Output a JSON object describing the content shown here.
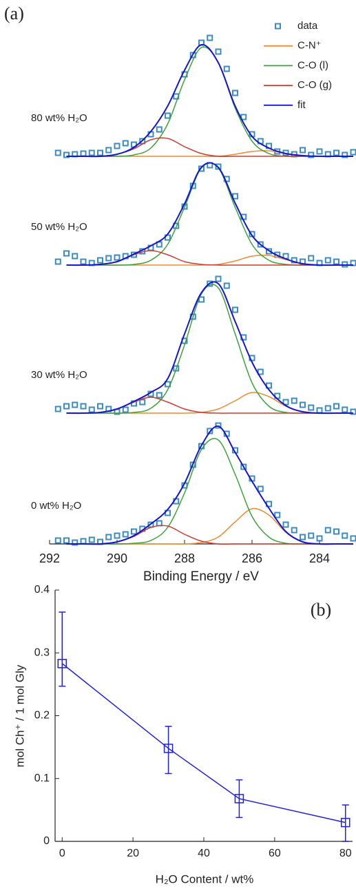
{
  "chart_data": [
    {
      "type": "xps",
      "title": "(a)",
      "xlabel": "Binding Energy / eV",
      "xlim": [
        292,
        283
      ],
      "xticks": [
        292,
        290,
        288,
        286,
        284
      ],
      "ylim": [
        0,
        7.6
      ],
      "panel_labels": [
        "80 wt% H₂O",
        "50 wt% H₂O",
        "30 wt% H₂O",
        "0 wt% H₂O"
      ],
      "x": [
        291.5,
        291,
        290.5,
        290,
        289.5,
        289,
        288.5,
        288,
        287.5,
        287,
        286.5,
        286,
        285.5,
        285,
        284.5,
        284,
        283.5,
        283
      ],
      "series": [
        {
          "name": "data",
          "color": "#3a8bc0",
          "x": [
            291.75,
            291.5,
            291.25,
            291,
            290.75,
            290.5,
            290.25,
            290,
            289.75,
            289.5,
            289.25,
            289,
            288.75,
            288.5,
            288.25,
            288,
            287.75,
            287.5,
            287.25,
            287,
            286.75,
            286.5,
            286.25,
            286,
            285.75,
            285.5,
            285.25,
            285,
            284.75,
            284.5,
            284.25,
            284,
            283.75,
            283.5,
            283.25,
            283
          ],
          "values": [
            [
              5.68,
              5.65,
              5.66,
              5.67,
              5.68,
              5.68,
              5.72,
              5.78,
              5.82,
              5.8,
              5.85,
              5.95,
              6.02,
              6.22,
              6.5,
              6.82,
              7.1,
              7.28,
              7.35,
              7.15,
              6.9,
              6.55,
              6.2,
              5.95,
              5.85,
              5.78,
              5.7,
              5.68,
              5.66,
              5.72,
              5.65,
              5.7,
              5.66,
              5.68,
              5.65,
              5.69
            ],
            [
              4.1,
              4.22,
              4.18,
              4.1,
              4.08,
              4.12,
              4.15,
              4.16,
              4.18,
              4.2,
              4.25,
              4.3,
              4.35,
              4.45,
              4.62,
              4.9,
              5.2,
              5.45,
              5.5,
              5.48,
              5.3,
              5.05,
              4.75,
              4.5,
              4.35,
              4.25,
              4.2,
              4.18,
              4.12,
              4.1,
              4.15,
              4.08,
              4.12,
              4.1,
              4.06,
              4.08
            ],
            [
              1.96,
              2.0,
              2.02,
              2.0,
              1.95,
              2.0,
              1.96,
              1.92,
              1.95,
              2.04,
              2.06,
              2.18,
              2.16,
              2.32,
              2.55,
              2.95,
              3.3,
              3.55,
              3.78,
              3.85,
              3.75,
              3.4,
              3.0,
              2.7,
              2.5,
              2.3,
              2.15,
              2.06,
              2.08,
              2.02,
              1.98,
              1.94,
              1.97,
              2.0,
              1.95,
              1.92
            ],
            [
              0.05,
              0.05,
              0.02,
              0.04,
              0.06,
              0.03,
              0.1,
              0.12,
              0.14,
              0.18,
              0.22,
              0.28,
              0.3,
              0.45,
              0.62,
              0.85,
              1.15,
              1.42,
              1.64,
              1.72,
              1.6,
              1.36,
              1.12,
              0.95,
              0.8,
              0.58,
              0.42,
              0.28,
              0.2,
              0.1,
              0.12,
              0.08,
              0.2,
              0.18,
              0.12,
              0.08
            ]
          ]
        },
        {
          "name": "C-N⁺",
          "color": "#f0892d",
          "values": [
            [
              5.63,
              5.63,
              5.63,
              5.63,
              5.63,
              5.63,
              5.63,
              5.63,
              5.63,
              5.63,
              5.66,
              5.7,
              5.71,
              5.67,
              5.64,
              5.63,
              5.63,
              5.63
            ],
            [
              4.05,
              4.05,
              4.05,
              4.05,
              4.05,
              4.05,
              4.05,
              4.05,
              4.05,
              4.06,
              4.11,
              4.18,
              4.19,
              4.13,
              4.07,
              4.05,
              4.05,
              4.05
            ],
            [
              1.9,
              1.9,
              1.9,
              1.9,
              1.9,
              1.9,
              1.9,
              1.9,
              1.91,
              1.96,
              2.08,
              2.2,
              2.14,
              2.0,
              1.92,
              1.9,
              1.9,
              1.9
            ],
            [
              0,
              0,
              0,
              0,
              0,
              0,
              0,
              0,
              0.02,
              0.1,
              0.32,
              0.51,
              0.42,
              0.17,
              0.03,
              0,
              0,
              0
            ]
          ]
        },
        {
          "name": "C-O (l)",
          "color": "#3aa33a",
          "values": [
            [
              5.63,
              5.63,
              5.63,
              5.63,
              5.65,
              5.75,
              6.1,
              6.74,
              7.21,
              6.99,
              6.33,
              5.85,
              5.67,
              5.63,
              5.63,
              5.63,
              5.63,
              5.63
            ],
            [
              4.05,
              4.05,
              4.05,
              4.05,
              4.06,
              4.12,
              4.35,
              4.89,
              5.46,
              5.46,
              4.89,
              4.35,
              4.12,
              4.06,
              4.05,
              4.05,
              4.05,
              4.05
            ],
            [
              1.9,
              1.9,
              1.9,
              1.9,
              1.91,
              1.97,
              2.24,
              2.89,
              3.63,
              3.72,
              3.05,
              2.34,
              2.0,
              1.91,
              1.9,
              1.9,
              1.9,
              1.9
            ],
            [
              0,
              0,
              0,
              0,
              0.01,
              0.05,
              0.24,
              0.74,
              1.37,
              1.51,
              1.01,
              0.4,
              0.1,
              0.01,
              0,
              0,
              0,
              0
            ]
          ]
        },
        {
          "name": "C-O (g)",
          "color": "#d03a2c",
          "values": [
            [
              5.63,
              5.63,
              5.63,
              5.66,
              5.74,
              5.87,
              5.89,
              5.77,
              5.67,
              5.63,
              5.63,
              5.63,
              5.63,
              5.63,
              5.63,
              5.63,
              5.63,
              5.63
            ],
            [
              4.05,
              4.05,
              4.06,
              4.1,
              4.2,
              4.26,
              4.2,
              4.1,
              4.06,
              4.05,
              4.05,
              4.05,
              4.05,
              4.05,
              4.05,
              4.05,
              4.05,
              4.05
            ],
            [
              1.9,
              1.9,
              1.91,
              1.96,
              2.06,
              2.13,
              2.06,
              1.96,
              1.91,
              1.9,
              1.9,
              1.9,
              1.9,
              1.9,
              1.9,
              1.9,
              1.9,
              1.9
            ],
            [
              0,
              0,
              0,
              0.03,
              0.11,
              0.24,
              0.26,
              0.14,
              0.04,
              0,
              0,
              0,
              0,
              0,
              0,
              0,
              0,
              0
            ]
          ]
        },
        {
          "name": "fit",
          "color": "#1414d2",
          "values": [
            [
              5.63,
              5.63,
              5.63,
              5.66,
              5.76,
              5.99,
              6.36,
              6.88,
              7.25,
              6.99,
              6.36,
              5.92,
              5.75,
              5.67,
              5.64,
              5.63,
              5.63,
              5.63
            ],
            [
              4.05,
              4.05,
              4.06,
              4.1,
              4.21,
              4.33,
              4.5,
              4.94,
              5.47,
              5.47,
              4.95,
              4.48,
              4.26,
              4.14,
              4.07,
              4.05,
              4.05,
              4.05
            ],
            [
              1.9,
              1.9,
              1.91,
              1.96,
              2.07,
              2.2,
              2.4,
              3.05,
              3.65,
              3.78,
              3.23,
              2.64,
              2.24,
              2.01,
              1.92,
              1.9,
              1.9,
              1.9
            ],
            [
              0,
              0,
              0,
              0.03,
              0.12,
              0.29,
              0.5,
              0.88,
              1.43,
              1.71,
              1.33,
              0.91,
              0.52,
              0.18,
              0.03,
              0,
              0,
              0
            ]
          ]
        }
      ]
    },
    {
      "type": "errorbar",
      "title": "(b)",
      "xlabel": "H₂O Content / wt%",
      "ylabel": "mol Ch⁺ / 1 mol Gly",
      "color": "#1f1fe6",
      "xlim": [
        -2,
        82
      ],
      "xticks": [
        0,
        20,
        40,
        60,
        80
      ],
      "ylim": [
        0,
        0.4
      ],
      "yticks": [
        0,
        0.1,
        0.2,
        0.3,
        0.4
      ],
      "x": [
        0,
        30,
        50,
        80
      ],
      "values": [
        0.283,
        0.148,
        0.068,
        0.03
      ],
      "err_minus": [
        0.036,
        0.04,
        0.03,
        0.03
      ],
      "err_plus": [
        0.082,
        0.035,
        0.03,
        0.028
      ]
    }
  ]
}
